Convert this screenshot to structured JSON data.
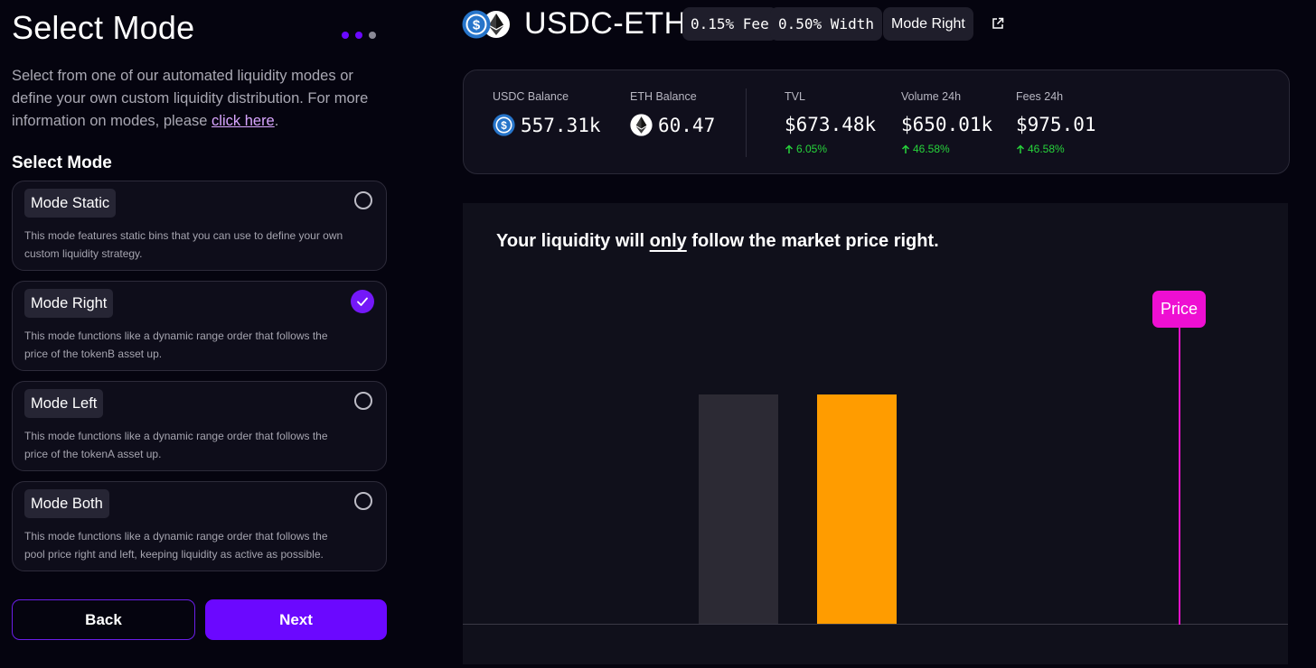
{
  "left": {
    "title": "Select Mode",
    "intro_text": "Select from one of our automated liquidity modes or define your own custom liquidity distribution. For more information on modes, please ",
    "intro_link": "click here",
    "intro_end": ".",
    "section_label": "Select Mode",
    "modes": [
      {
        "label": "Mode Static",
        "desc": "This mode features static bins that you can use to define your own custom liquidity strategy.",
        "selected": false
      },
      {
        "label": "Mode Right",
        "desc": "This mode functions like a dynamic range order that follows the price of the tokenB asset up.",
        "selected": true
      },
      {
        "label": "Mode Left",
        "desc": "This mode functions like a dynamic range order that follows the price of the tokenA asset up.",
        "selected": false
      },
      {
        "label": "Mode Both",
        "desc": "This mode functions like a dynamic range order that follows the pool price right and left, keeping liquidity as active as possible.",
        "selected": false
      }
    ],
    "back_label": "Back",
    "next_label": "Next"
  },
  "header": {
    "pair": "USDC-ETH",
    "fee_pill": "0.15% Fee",
    "width_pill": "0.50% Width",
    "mode_pill": "Mode Right"
  },
  "stats": {
    "usdc_label": "USDC Balance",
    "usdc_value": "557.31k",
    "eth_label": "ETH Balance",
    "eth_value": "60.47",
    "tvl_label": "TVL",
    "tvl_value": "$673.48k",
    "tvl_change": "6.05%",
    "volume_label": "Volume 24h",
    "volume_value": "$650.01k",
    "volume_change": "46.58%",
    "fees_label": "Fees 24h",
    "fees_value": "$975.01",
    "fees_change": "46.58%"
  },
  "chart": {
    "heading_pre": "Your liquidity will ",
    "heading_emph": "only",
    "heading_post": " follow the market price right.",
    "price_label": "Price"
  },
  "colors": {
    "accent": "#6b08ff",
    "bar_inactive": "#2c2a34",
    "bar_active": "#ff9c00",
    "price": "#ee0fd2",
    "positive": "#27d43b"
  },
  "icons": {
    "usdc": "usdc-coin-icon",
    "eth": "eth-coin-icon",
    "external": "external-link-icon",
    "check": "check-icon",
    "arrow_up": "arrow-up-icon"
  }
}
